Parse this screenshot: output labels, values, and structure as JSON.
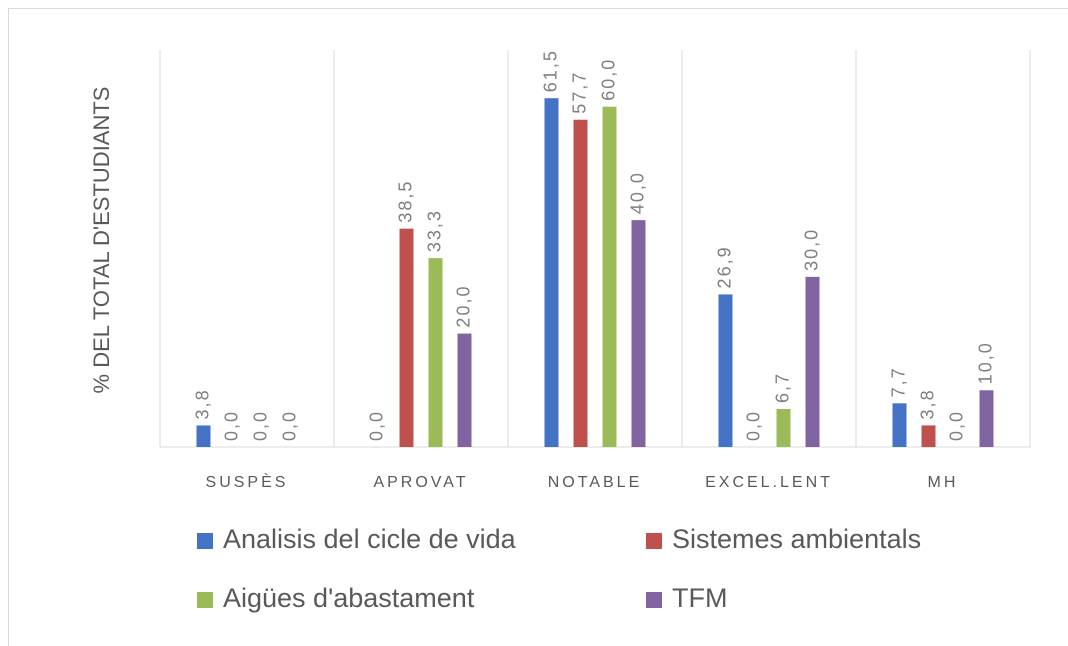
{
  "chart_data": {
    "type": "bar",
    "y_label": "% DEL TOTAL D'ESTUDIANTS",
    "categories": [
      "SUSPÈS",
      "APROVAT",
      "NOTABLE",
      "EXCEL.LENT",
      "MH"
    ],
    "ylim": [
      0,
      70
    ],
    "series": [
      {
        "name": "Analisis del cicle de vida",
        "color": "#4472c4",
        "values": [
          3.8,
          0.0,
          61.5,
          26.9,
          7.7
        ],
        "value_labels": [
          "3,8",
          "0,0",
          "61,5",
          "26,9",
          "7,7"
        ]
      },
      {
        "name": "Sistemes ambientals",
        "color": "#c0504d",
        "values": [
          0.0,
          38.5,
          57.7,
          0.0,
          3.8
        ],
        "value_labels": [
          "0,0",
          "38,5",
          "57,7",
          "0,0",
          "3,8"
        ]
      },
      {
        "name": "Aigües d'abastament",
        "color": "#9bbb59",
        "values": [
          0.0,
          33.3,
          60.0,
          6.7,
          0.0
        ],
        "value_labels": [
          "0,0",
          "33,3",
          "60,0",
          "6,7",
          "0,0"
        ]
      },
      {
        "name": "TFM",
        "color": "#8064a2",
        "values": [
          0.0,
          20.0,
          40.0,
          30.0,
          10.0
        ],
        "value_labels": [
          "0,0",
          "20,0",
          "40,0",
          "30,0",
          "10,0"
        ]
      }
    ]
  }
}
